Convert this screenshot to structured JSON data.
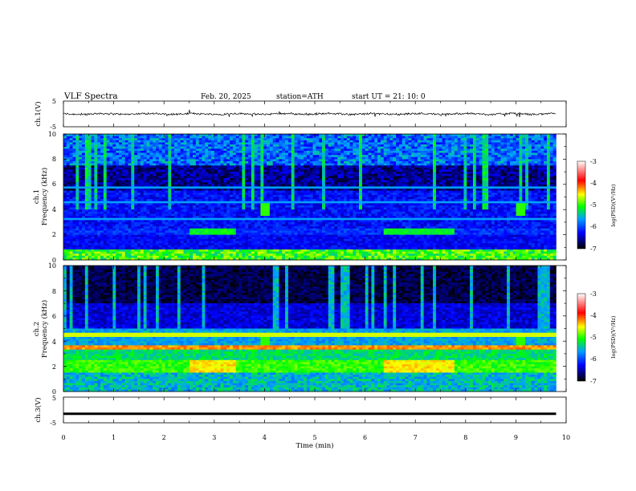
{
  "header": {
    "title": "VLF  Spectra",
    "date": "Feb. 20, 2025",
    "station": "station=ATH",
    "start": "start  UT  =    21: 10: 0"
  },
  "colorbar": {
    "label": "log(PSD)(V²/Hz)",
    "ticks": [
      "-3",
      "-4",
      "-5",
      "-6",
      "-7"
    ],
    "stops": [
      "#ffffff",
      "#ff0000",
      "#ffff00",
      "#00ff00",
      "#00a0ff",
      "#0000ff",
      "#000000"
    ]
  },
  "chart_data": [
    {
      "type": "line",
      "name": "ch.1 waveform",
      "ylabel": "ch.1(V)",
      "ylim": [
        -5,
        5
      ],
      "yticks": [
        "5",
        "-5"
      ],
      "baseline": 0,
      "amplitude_range": [
        -1,
        1
      ],
      "color": "#000000"
    },
    {
      "type": "heatmap",
      "name": "ch.1 spectrogram",
      "ylabel_top": "ch.1",
      "ylabel": "Frequency  (kHz)",
      "ylim": [
        0,
        10
      ],
      "yticks": [
        "10",
        "8",
        "6",
        "4",
        "2",
        "0"
      ],
      "z_range": [
        -7,
        -3
      ],
      "features": [
        {
          "kind": "strong band",
          "freq_khz": [
            0.0,
            0.9
          ],
          "logpsd": -4.5
        },
        {
          "kind": "moderate band",
          "freq_khz": [
            2.0,
            2.4
          ],
          "logpsd": -5.0,
          "time_min": [
            2.5,
            3.4
          ]
        },
        {
          "kind": "moderate band",
          "freq_khz": [
            2.0,
            2.4
          ],
          "logpsd": -5.0,
          "time_min": [
            6.4,
            7.8
          ]
        },
        {
          "kind": "bursts",
          "freq_khz": [
            3.5,
            4.3
          ],
          "time_min": [
            4.0,
            9.1
          ]
        },
        {
          "kind": "background",
          "freq_khz": [
            1.0,
            10.0
          ],
          "logpsd": -6.3
        },
        {
          "kind": "impulsive spikes",
          "freq_khz": [
            4.0,
            10.0
          ],
          "logpsd": -5.2
        }
      ]
    },
    {
      "type": "heatmap",
      "name": "ch.2 spectrogram",
      "ylabel_top": "ch.2",
      "ylabel": "Frequency  (kHz)",
      "ylim": [
        0,
        10
      ],
      "yticks": [
        "10",
        "8",
        "6",
        "4",
        "2",
        "0"
      ],
      "z_range": [
        -7,
        -3
      ],
      "features": [
        {
          "kind": "strong band",
          "freq_khz": [
            1.5,
            2.5
          ],
          "logpsd": -4.2,
          "time_min": [
            2.5,
            3.4
          ]
        },
        {
          "kind": "strong band",
          "freq_khz": [
            1.5,
            2.5
          ],
          "logpsd": -4.2,
          "time_min": [
            6.4,
            7.8
          ]
        },
        {
          "kind": "line",
          "freq_khz": [
            3.4,
            3.6
          ],
          "logpsd": -4.0
        },
        {
          "kind": "band",
          "freq_khz": [
            0.0,
            3.5
          ],
          "logpsd": -5.0
        },
        {
          "kind": "background",
          "freq_khz": [
            4.0,
            10.0
          ],
          "logpsd": -6.5
        }
      ]
    },
    {
      "type": "line",
      "name": "ch.3 waveform",
      "ylabel": "ch.3(V)",
      "ylim": [
        -5,
        5
      ],
      "yticks": [
        "5",
        "-5"
      ],
      "baseline": -1.5,
      "color": "#000000"
    }
  ],
  "xaxis": {
    "label": "Time  (min)",
    "xlim": [
      0,
      10
    ],
    "ticks": [
      "0",
      "1",
      "2",
      "3",
      "4",
      "5",
      "6",
      "7",
      "8",
      "9",
      "10"
    ],
    "data_end": 9.8
  }
}
